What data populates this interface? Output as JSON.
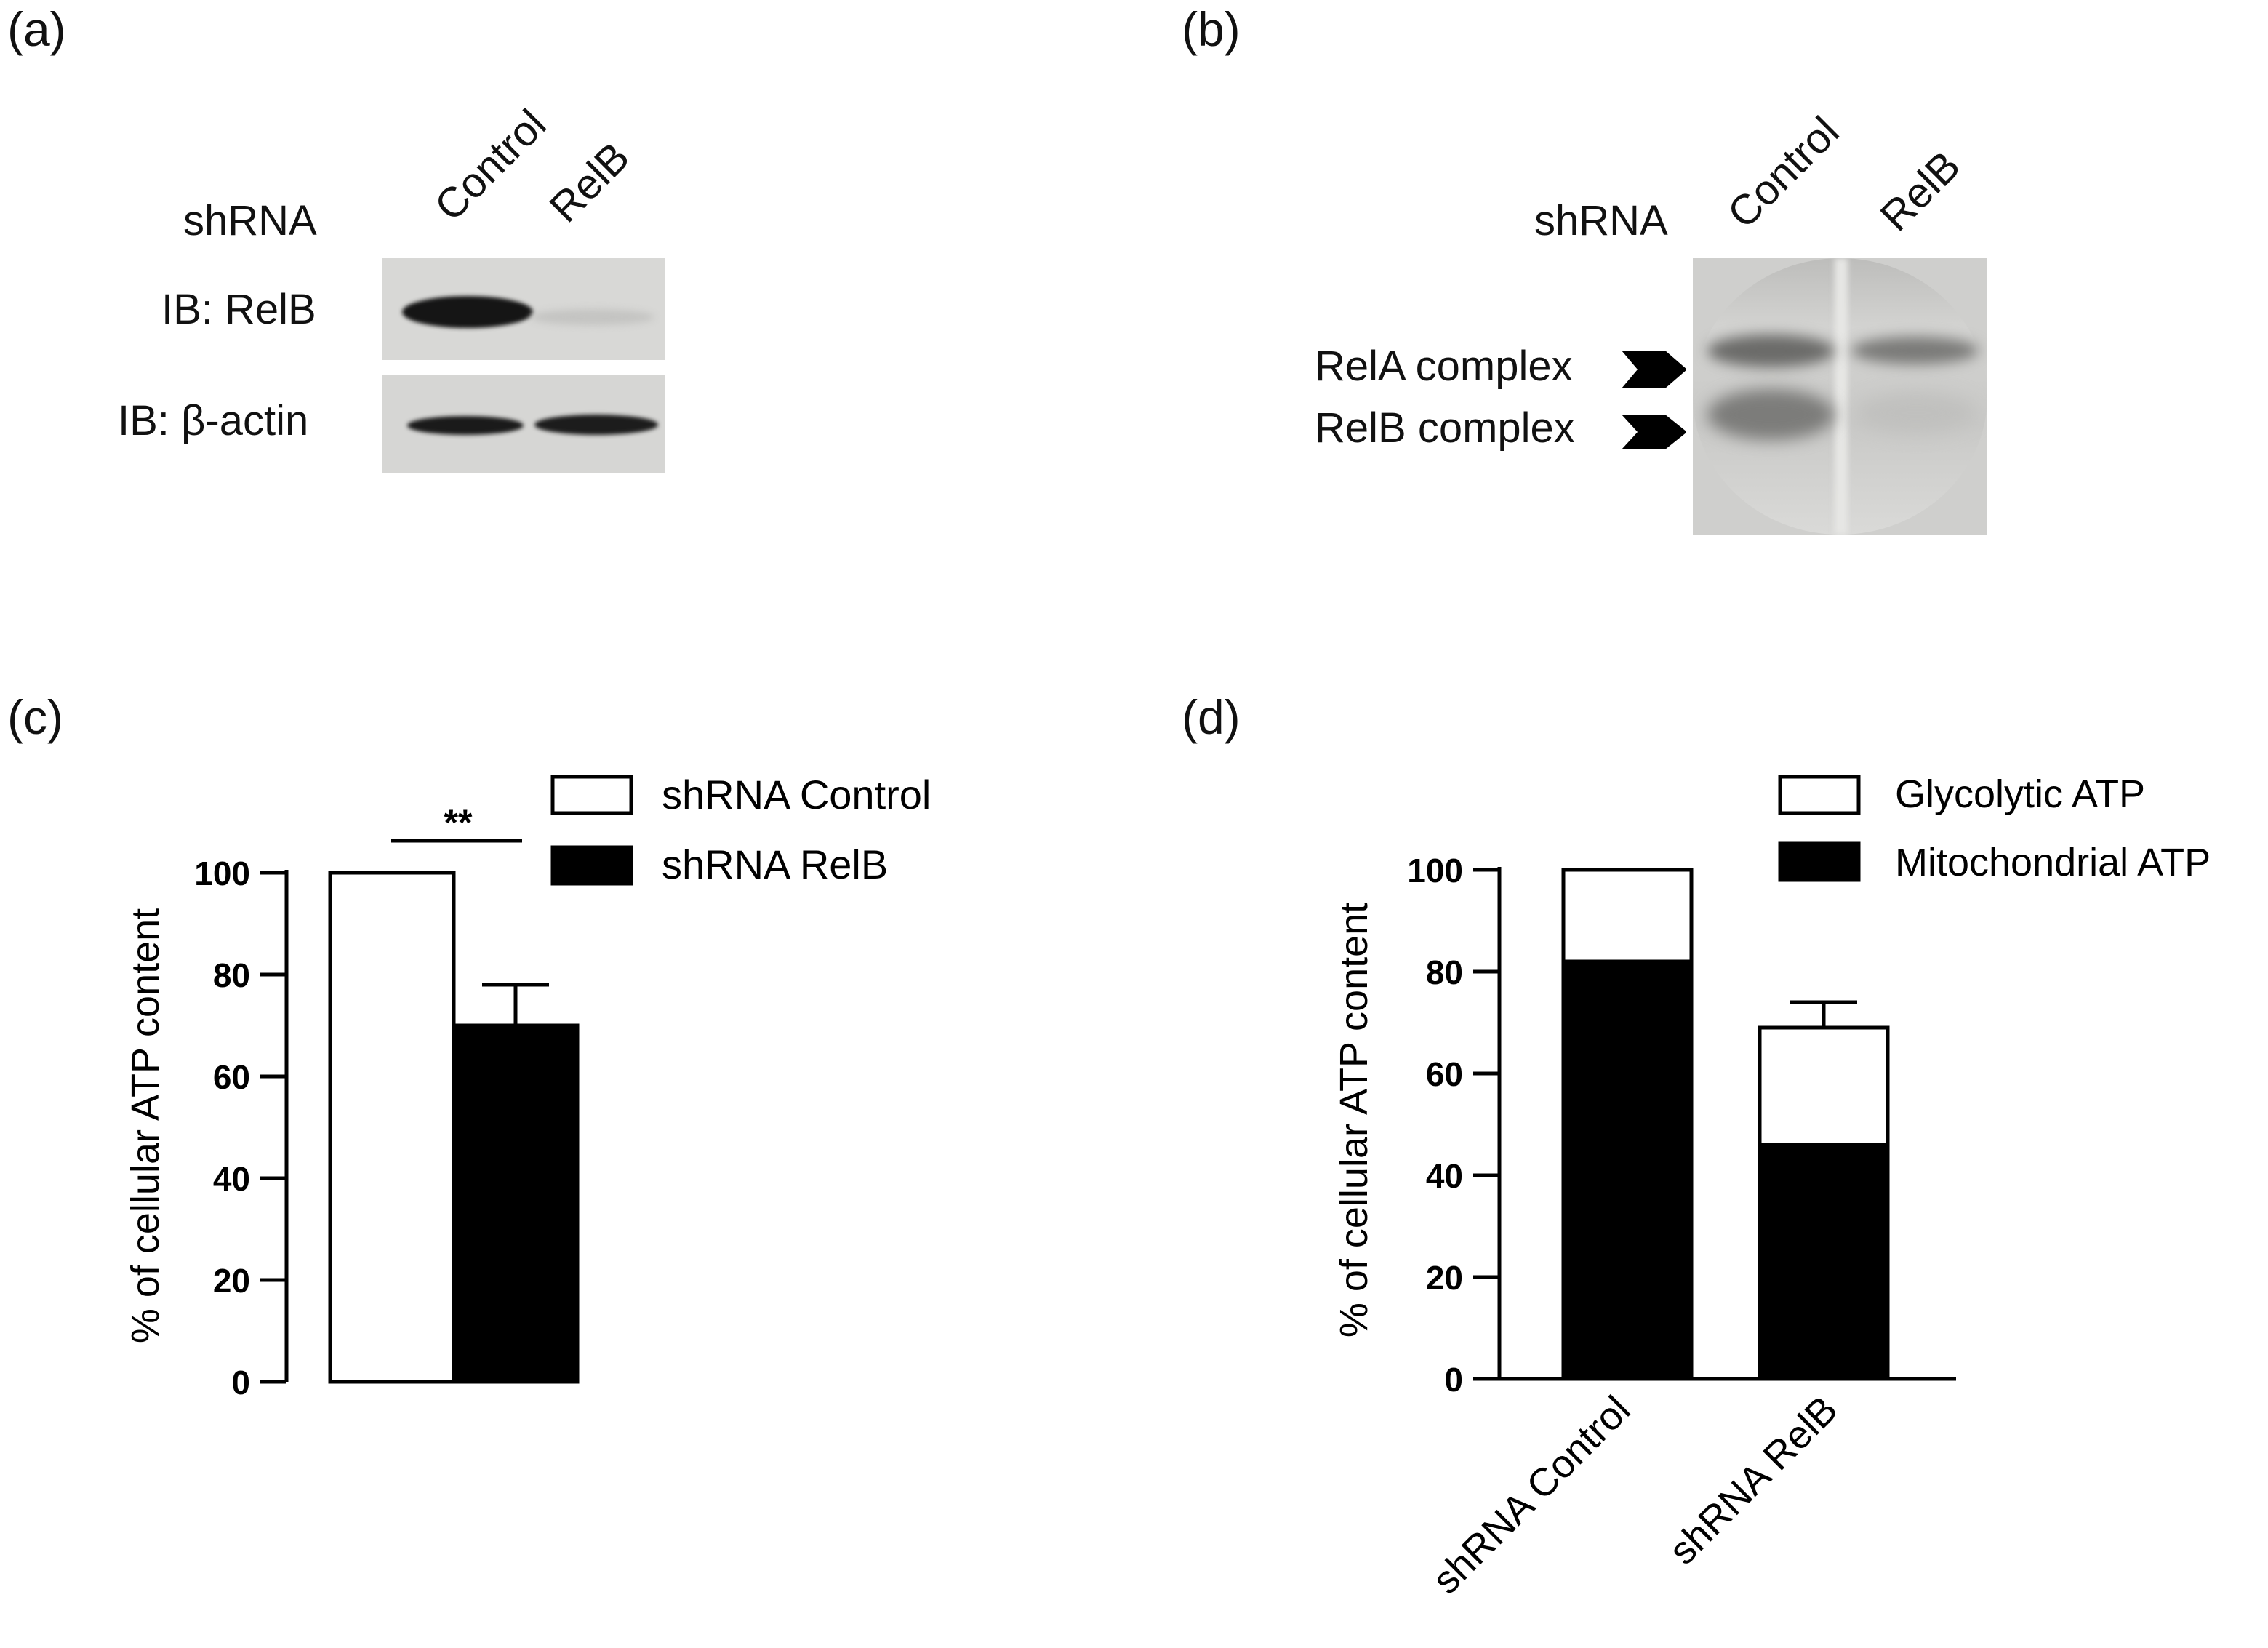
{
  "panels": {
    "a": {
      "label": "(a)",
      "row_label": "shRNA",
      "lanes": [
        "Control",
        "RelB"
      ],
      "blots": [
        "IB: RelB",
        "IB: β-actin"
      ]
    },
    "b": {
      "label": "(b)",
      "row_label": "shRNA",
      "lanes": [
        "Control",
        "RelB"
      ],
      "bands": [
        "RelA complex",
        "RelB complex"
      ]
    },
    "c": {
      "label": "(c)"
    },
    "d": {
      "label": "(d)"
    }
  },
  "chart_data": [
    {
      "type": "bar",
      "panel": "c",
      "categories": [
        "shRNA Control",
        "shRNA RelB"
      ],
      "series": [
        {
          "name": "shRNA Control",
          "values": [
            100,
            null
          ],
          "error": [
            0,
            null
          ],
          "color": "#ffffff"
        },
        {
          "name": "shRNA RelB",
          "values": [
            null,
            70
          ],
          "error": [
            null,
            8
          ],
          "color": "#000000"
        }
      ],
      "ylabel": "% of cellular ATP content",
      "ylim": [
        0,
        100
      ],
      "yticks": [
        "0",
        "20",
        "40",
        "60",
        "80",
        "100"
      ],
      "legend": [
        "shRNA Control",
        "shRNA RelB"
      ],
      "legend_position": "top-right",
      "significance": "**"
    },
    {
      "type": "bar",
      "stacked": true,
      "panel": "d",
      "categories": [
        "shRNA Control",
        "shRNA RelB"
      ],
      "series": [
        {
          "name": "Mitochondrial ATP",
          "values": [
            82,
            46
          ],
          "error": [
            1,
            6
          ],
          "color": "#000000"
        },
        {
          "name": "Glycolytic ATP",
          "values": [
            18,
            23
          ],
          "error": [
            0,
            5
          ],
          "color": "#ffffff"
        }
      ],
      "ylabel": "% of cellular ATP content",
      "ylim": [
        0,
        100
      ],
      "yticks": [
        "0",
        "20",
        "40",
        "60",
        "80",
        "100"
      ],
      "legend": [
        "Glycolytic ATP",
        "Mitochondrial ATP"
      ],
      "legend_position": "top-right"
    }
  ]
}
